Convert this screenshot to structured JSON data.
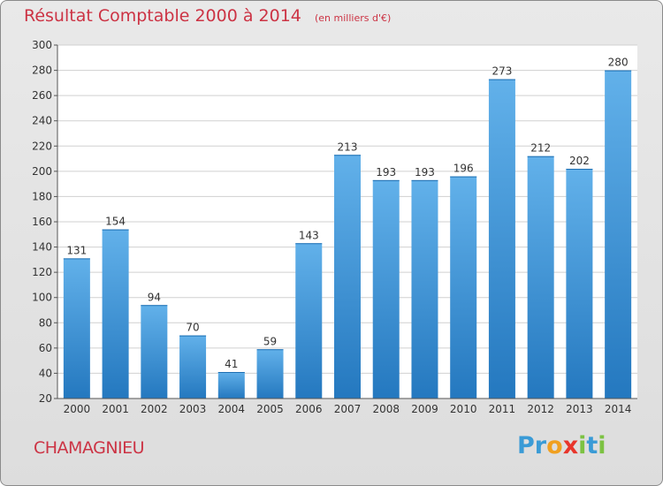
{
  "title": "Résultat Comptable 2000 à 2014",
  "unit": "(en milliers d'€)",
  "commune": "CHAMAGNIEU",
  "logo": {
    "letters": [
      {
        "ch": "P",
        "color": "#3a9bd6"
      },
      {
        "ch": "r",
        "color": "#3a9bd6"
      },
      {
        "ch": "o",
        "color": "#f0a020"
      },
      {
        "ch": "x",
        "color": "#e8352b"
      },
      {
        "ch": "i",
        "color": "#7cc242"
      },
      {
        "ch": "t",
        "color": "#3a9bd6"
      },
      {
        "ch": "i",
        "color": "#7cc242"
      }
    ]
  },
  "colors": {
    "title": "#cc3344",
    "bar_top": "#62b1ea",
    "bar_bottom": "#2478bf"
  },
  "chart_data": {
    "type": "bar",
    "categories": [
      "2000",
      "2001",
      "2002",
      "2003",
      "2004",
      "2005",
      "2006",
      "2007",
      "2008",
      "2009",
      "2010",
      "2011",
      "2012",
      "2013",
      "2014"
    ],
    "values": [
      131,
      154,
      94,
      70,
      41,
      59,
      143,
      213,
      193,
      193,
      196,
      273,
      212,
      202,
      280
    ],
    "ylim": [
      20,
      300
    ],
    "yticks": [
      20,
      40,
      60,
      80,
      100,
      120,
      140,
      160,
      180,
      200,
      220,
      240,
      260,
      280,
      300
    ],
    "grid": true
  }
}
